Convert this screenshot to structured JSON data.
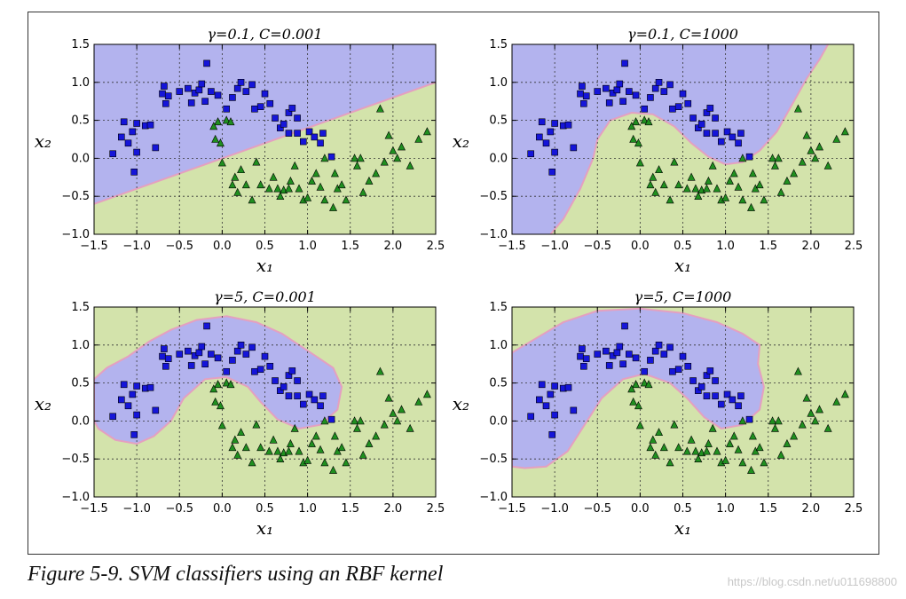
{
  "figure": {
    "caption": "Figure 5-9. SVM classifiers using an RBF kernel",
    "watermark": "https://blog.csdn.net/u011698800"
  },
  "colors": {
    "class0_region": "#b3b3ee",
    "class1_region": "#d3e3ab",
    "boundary": "#e4a0c0",
    "square_marker": "#1515d9",
    "triangle_marker": "#1f8f1f"
  },
  "chart_data": [
    {
      "type": "scatter",
      "title": "γ=0.1, C=0.001",
      "xlabel": "x₁",
      "ylabel": "x₂",
      "xlim": [
        -1.5,
        2.5
      ],
      "ylim": [
        -1.0,
        1.5
      ],
      "xticks": [
        "−1.5",
        "−1.0",
        "−0.5",
        "0.0",
        "0.5",
        "1.0",
        "1.5",
        "2.0",
        "2.5"
      ],
      "yticks": [
        "−1.0",
        "−0.5",
        "0.0",
        "0.5",
        "1.0",
        "1.5"
      ],
      "grid": true,
      "decision_boundary": {
        "kind": "linear",
        "points": [
          [
            -1.5,
            -0.6
          ],
          [
            2.5,
            1.0
          ]
        ]
      }
    },
    {
      "type": "scatter",
      "title": "γ=0.1, C=1000",
      "xlabel": "x₁",
      "ylabel": "x₂",
      "xlim": [
        -1.5,
        2.5
      ],
      "ylim": [
        -1.0,
        1.5
      ],
      "xticks": [
        "−1.5",
        "−1.0",
        "−0.5",
        "0.0",
        "0.5",
        "1.0",
        "1.5",
        "2.0",
        "2.5"
      ],
      "yticks": [
        "−1.0",
        "−0.5",
        "0.0",
        "0.5",
        "1.0",
        "1.5"
      ],
      "grid": true,
      "decision_boundary": {
        "kind": "curve",
        "points": [
          [
            -1.05,
            -1.0
          ],
          [
            -0.9,
            -0.8
          ],
          [
            -0.7,
            -0.4
          ],
          [
            -0.55,
            0.0
          ],
          [
            -0.5,
            0.25
          ],
          [
            -0.35,
            0.5
          ],
          [
            -0.1,
            0.6
          ],
          [
            0.15,
            0.58
          ],
          [
            0.4,
            0.42
          ],
          [
            0.6,
            0.2
          ],
          [
            0.8,
            0.02
          ],
          [
            1.0,
            -0.08
          ],
          [
            1.2,
            -0.05
          ],
          [
            1.4,
            0.1
          ],
          [
            1.6,
            0.35
          ],
          [
            1.8,
            0.75
          ],
          [
            1.95,
            1.05
          ],
          [
            2.1,
            1.3
          ],
          [
            2.2,
            1.5
          ]
        ]
      }
    },
    {
      "type": "scatter",
      "title": "γ=5, C=0.001",
      "xlabel": "x₁",
      "ylabel": "x₂",
      "xlim": [
        -1.5,
        2.5
      ],
      "ylim": [
        -1.0,
        1.5
      ],
      "xticks": [
        "−1.5",
        "−1.0",
        "−0.5",
        "0.0",
        "0.5",
        "1.0",
        "1.5",
        "2.0",
        "2.5"
      ],
      "yticks": [
        "−1.0",
        "−0.5",
        "0.0",
        "0.5",
        "1.0",
        "1.5"
      ],
      "grid": true,
      "decision_boundary": {
        "kind": "closed",
        "points": [
          [
            -1.5,
            0.55
          ],
          [
            -1.35,
            0.7
          ],
          [
            -1.1,
            0.85
          ],
          [
            -0.85,
            1.05
          ],
          [
            -0.6,
            1.2
          ],
          [
            -0.3,
            1.33
          ],
          [
            0.05,
            1.38
          ],
          [
            0.4,
            1.3
          ],
          [
            0.7,
            1.15
          ],
          [
            0.9,
            1.0
          ],
          [
            1.1,
            0.85
          ],
          [
            1.3,
            0.7
          ],
          [
            1.4,
            0.45
          ],
          [
            1.35,
            0.15
          ],
          [
            1.15,
            -0.05
          ],
          [
            0.9,
            -0.1
          ],
          [
            0.65,
            0.02
          ],
          [
            0.45,
            0.25
          ],
          [
            0.3,
            0.45
          ],
          [
            0.05,
            0.58
          ],
          [
            -0.2,
            0.55
          ],
          [
            -0.45,
            0.3
          ],
          [
            -0.6,
            0.0
          ],
          [
            -0.8,
            -0.2
          ],
          [
            -1.0,
            -0.3
          ],
          [
            -1.25,
            -0.25
          ],
          [
            -1.45,
            -0.1
          ],
          [
            -1.5,
            0.0
          ]
        ]
      }
    },
    {
      "type": "scatter",
      "title": "γ=5, C=1000",
      "xlabel": "x₁",
      "ylabel": "x₂",
      "xlim": [
        -1.5,
        2.5
      ],
      "ylim": [
        -1.0,
        1.5
      ],
      "xticks": [
        "−1.5",
        "−1.0",
        "−0.5",
        "0.0",
        "0.5",
        "1.0",
        "1.5",
        "2.0",
        "2.5"
      ],
      "yticks": [
        "−1.0",
        "−0.5",
        "0.0",
        "0.5",
        "1.0",
        "1.5"
      ],
      "grid": true,
      "decision_boundary": {
        "kind": "closed",
        "points": [
          [
            -1.5,
            0.9
          ],
          [
            -1.2,
            1.1
          ],
          [
            -0.9,
            1.3
          ],
          [
            -0.5,
            1.45
          ],
          [
            0.0,
            1.48
          ],
          [
            0.5,
            1.42
          ],
          [
            0.9,
            1.3
          ],
          [
            1.2,
            1.15
          ],
          [
            1.4,
            1.0
          ],
          [
            1.38,
            0.75
          ],
          [
            1.45,
            0.45
          ],
          [
            1.4,
            0.15
          ],
          [
            1.2,
            -0.05
          ],
          [
            0.95,
            -0.1
          ],
          [
            0.75,
            0.05
          ],
          [
            0.55,
            0.3
          ],
          [
            0.35,
            0.5
          ],
          [
            0.05,
            0.62
          ],
          [
            -0.2,
            0.55
          ],
          [
            -0.45,
            0.3
          ],
          [
            -0.65,
            -0.05
          ],
          [
            -0.85,
            -0.4
          ],
          [
            -1.1,
            -0.6
          ],
          [
            -1.35,
            -0.62
          ],
          [
            -1.5,
            -0.6
          ]
        ]
      }
    }
  ],
  "scatter_points": {
    "squares": [
      [
        -1.28,
        0.06
      ],
      [
        -1.15,
        0.48
      ],
      [
        -1.18,
        0.28
      ],
      [
        -1.1,
        0.2
      ],
      [
        -1.05,
        0.35
      ],
      [
        -1.0,
        0.46
      ],
      [
        -1.03,
        -0.18
      ],
      [
        -1.0,
        0.08
      ],
      [
        -0.9,
        0.43
      ],
      [
        -0.84,
        0.44
      ],
      [
        -0.78,
        0.14
      ],
      [
        -0.7,
        0.85
      ],
      [
        -0.68,
        0.95
      ],
      [
        -0.66,
        0.72
      ],
      [
        -0.63,
        0.82
      ],
      [
        -0.5,
        0.88
      ],
      [
        -0.4,
        0.92
      ],
      [
        -0.36,
        0.73
      ],
      [
        -0.32,
        0.86
      ],
      [
        -0.27,
        0.9
      ],
      [
        -0.24,
        0.98
      ],
      [
        -0.2,
        0.75
      ],
      [
        -0.18,
        1.25
      ],
      [
        -0.13,
        0.88
      ],
      [
        -0.05,
        0.83
      ],
      [
        0.05,
        0.65
      ],
      [
        0.12,
        0.8
      ],
      [
        0.18,
        0.92
      ],
      [
        0.22,
        1.0
      ],
      [
        0.28,
        0.88
      ],
      [
        0.35,
        0.97
      ],
      [
        0.38,
        0.65
      ],
      [
        0.45,
        0.68
      ],
      [
        0.5,
        0.85
      ],
      [
        0.56,
        0.72
      ],
      [
        0.62,
        0.53
      ],
      [
        0.68,
        0.4
      ],
      [
        0.72,
        0.45
      ],
      [
        0.78,
        0.6
      ],
      [
        0.82,
        0.66
      ],
      [
        0.88,
        0.53
      ],
      [
        0.78,
        0.33
      ],
      [
        0.88,
        0.33
      ],
      [
        0.95,
        0.22
      ],
      [
        1.02,
        0.35
      ],
      [
        1.08,
        0.28
      ],
      [
        1.18,
        0.33
      ],
      [
        1.28,
        0.02
      ],
      [
        1.15,
        0.2
      ]
    ],
    "triangles": [
      [
        -0.05,
        0.48
      ],
      [
        -0.1,
        0.42
      ],
      [
        -0.08,
        0.25
      ],
      [
        -0.02,
        0.2
      ],
      [
        0.0,
        -0.06
      ],
      [
        0.05,
        0.5
      ],
      [
        0.1,
        0.48
      ],
      [
        0.12,
        -0.35
      ],
      [
        0.15,
        -0.25
      ],
      [
        0.18,
        -0.45
      ],
      [
        0.22,
        -0.15
      ],
      [
        0.28,
        -0.35
      ],
      [
        0.35,
        -0.55
      ],
      [
        0.4,
        -0.05
      ],
      [
        0.45,
        -0.35
      ],
      [
        0.55,
        -0.4
      ],
      [
        0.6,
        -0.25
      ],
      [
        0.65,
        -0.4
      ],
      [
        0.68,
        -0.5
      ],
      [
        0.72,
        -0.42
      ],
      [
        0.78,
        -0.4
      ],
      [
        0.8,
        -0.3
      ],
      [
        0.85,
        -0.1
      ],
      [
        0.9,
        -0.4
      ],
      [
        0.95,
        -0.55
      ],
      [
        1.0,
        -0.52
      ],
      [
        1.05,
        -0.3
      ],
      [
        1.1,
        -0.2
      ],
      [
        1.15,
        -0.38
      ],
      [
        1.2,
        -0.55
      ],
      [
        1.3,
        -0.65
      ],
      [
        1.35,
        -0.4
      ],
      [
        1.4,
        -0.35
      ],
      [
        1.45,
        -0.55
      ],
      [
        1.55,
        0.0
      ],
      [
        1.58,
        -0.1
      ],
      [
        1.62,
        0.0
      ],
      [
        1.65,
        -0.45
      ],
      [
        1.72,
        -0.3
      ],
      [
        1.8,
        -0.2
      ],
      [
        1.85,
        0.65
      ],
      [
        1.9,
        -0.05
      ],
      [
        1.95,
        0.3
      ],
      [
        2.0,
        0.1
      ],
      [
        2.05,
        0.0
      ],
      [
        2.1,
        0.15
      ],
      [
        2.2,
        -0.1
      ],
      [
        2.3,
        0.25
      ],
      [
        2.4,
        0.35
      ],
      [
        1.2,
        0.0
      ],
      [
        1.32,
        -0.2
      ]
    ]
  }
}
